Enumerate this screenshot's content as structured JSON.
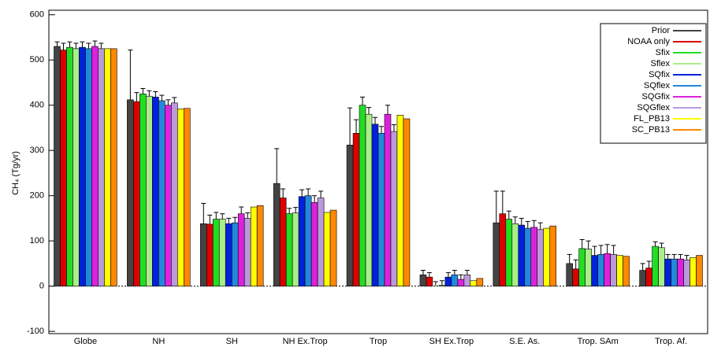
{
  "chart_data": {
    "type": "bar",
    "y_label": "CH₄ (Tg/yr)",
    "categories": [
      "Globe",
      "NH",
      "SH",
      "NH Ex.Trop",
      "Trop",
      "SH Ex.Trop",
      "S.E. As.",
      "Trop. SAm",
      "Trop. Af."
    ],
    "ylim": [
      -105,
      610
    ],
    "yticks": [
      -100,
      0,
      100,
      200,
      300,
      400,
      500,
      600
    ],
    "legend": "upper right",
    "series": [
      {
        "name": "Prior",
        "color": "#444444",
        "values": [
          530,
          412,
          138,
          227,
          312,
          25,
          140,
          50,
          35
        ],
        "errors": [
          10,
          110,
          45,
          77,
          82,
          10,
          70,
          20,
          15
        ]
      },
      {
        "name": "NOAA only",
        "color": "#dd0000",
        "values": [
          522,
          408,
          137,
          195,
          338,
          20,
          160,
          38,
          40
        ],
        "errors": [
          15,
          20,
          20,
          20,
          30,
          10,
          50,
          20,
          15
        ]
      },
      {
        "name": "Sfix",
        "color": "#22dd22",
        "values": [
          528,
          425,
          148,
          160,
          400,
          0,
          148,
          83,
          88
        ],
        "errors": [
          12,
          12,
          15,
          12,
          18,
          10,
          18,
          20,
          10
        ]
      },
      {
        "name": "Sflex",
        "color": "#aaee88",
        "values": [
          525,
          420,
          148,
          162,
          380,
          2,
          138,
          82,
          85
        ],
        "errors": [
          12,
          12,
          12,
          12,
          15,
          10,
          15,
          18,
          10
        ]
      },
      {
        "name": "SQfix",
        "color": "#0022dd",
        "values": [
          528,
          418,
          138,
          198,
          358,
          20,
          135,
          68,
          60
        ],
        "errors": [
          12,
          12,
          12,
          15,
          15,
          10,
          15,
          20,
          10
        ]
      },
      {
        "name": "SQflex",
        "color": "#2288dd",
        "values": [
          525,
          410,
          140,
          200,
          338,
          25,
          128,
          70,
          60
        ],
        "errors": [
          12,
          12,
          12,
          15,
          15,
          10,
          15,
          20,
          10
        ]
      },
      {
        "name": "SQGfix",
        "color": "#dd22dd",
        "values": [
          530,
          400,
          160,
          185,
          380,
          15,
          130,
          72,
          60
        ],
        "errors": [
          12,
          12,
          15,
          15,
          20,
          10,
          15,
          20,
          10
        ]
      },
      {
        "name": "SQGflex",
        "color": "#bb99dd",
        "values": [
          525,
          405,
          150,
          195,
          342,
          25,
          125,
          70,
          58
        ],
        "errors": [
          12,
          12,
          12,
          15,
          15,
          10,
          15,
          20,
          10
        ]
      },
      {
        "name": "FL_PB13",
        "color": "#ffff00",
        "values": [
          525,
          392,
          175,
          163,
          378,
          12,
          128,
          68,
          63
        ]
      },
      {
        "name": "SC_PB13",
        "color": "#ff8800",
        "values": [
          525,
          393,
          178,
          168,
          370,
          17,
          133,
          66,
          68
        ]
      }
    ]
  }
}
